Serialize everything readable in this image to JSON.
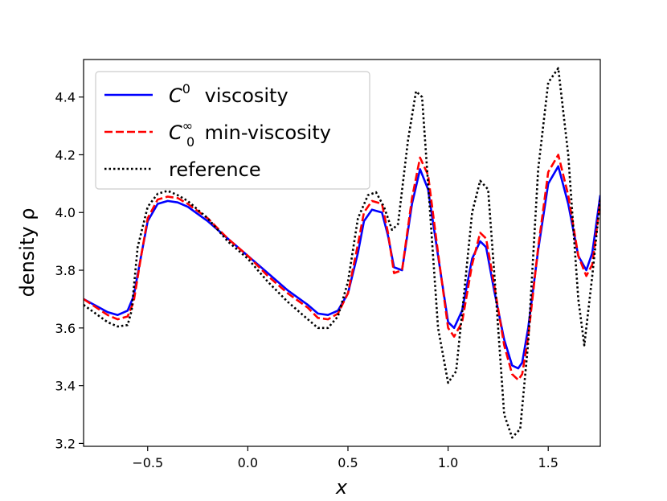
{
  "chart_data": {
    "type": "line",
    "title": "",
    "xlabel": "x",
    "ylabel": "density ρ",
    "xlim": [
      -0.82,
      1.76
    ],
    "ylim": [
      3.19,
      4.53
    ],
    "grid": false,
    "legend_position": "upper-left",
    "x_ticks": [
      -0.5,
      0.0,
      0.5,
      1.0,
      1.5
    ],
    "x_tick_labels": [
      "−0.5",
      "0.0",
      "0.5",
      "1.0",
      "1.5"
    ],
    "y_ticks": [
      3.2,
      3.4,
      3.6,
      3.8,
      4.0,
      4.2,
      4.4
    ],
    "y_tick_labels": [
      "3.2",
      "3.4",
      "3.6",
      "3.8",
      "4.0",
      "4.2",
      "4.4"
    ],
    "series": [
      {
        "name": "C0 viscosity",
        "legend_main": "C",
        "legend_sup": "0",
        "legend_sub": "",
        "legend_rest": " viscosity",
        "color": "#0000ff",
        "style": "solid",
        "x": [
          -0.82,
          -0.7,
          -0.65,
          -0.6,
          -0.57,
          -0.53,
          -0.5,
          -0.45,
          -0.4,
          -0.35,
          -0.3,
          -0.2,
          -0.1,
          0.0,
          0.1,
          0.2,
          0.3,
          0.35,
          0.4,
          0.45,
          0.5,
          0.55,
          0.58,
          0.62,
          0.67,
          0.7,
          0.73,
          0.77,
          0.82,
          0.86,
          0.9,
          0.95,
          1.0,
          1.03,
          1.07,
          1.12,
          1.16,
          1.19,
          1.23,
          1.28,
          1.32,
          1.35,
          1.37,
          1.4,
          1.45,
          1.5,
          1.55,
          1.6,
          1.65,
          1.69,
          1.72,
          1.76
        ],
        "y": [
          3.7,
          3.655,
          3.645,
          3.66,
          3.71,
          3.86,
          3.97,
          4.03,
          4.04,
          4.035,
          4.02,
          3.97,
          3.91,
          3.85,
          3.79,
          3.73,
          3.68,
          3.65,
          3.645,
          3.66,
          3.72,
          3.86,
          3.97,
          4.01,
          4.0,
          3.92,
          3.81,
          3.8,
          4.03,
          4.15,
          4.08,
          3.85,
          3.62,
          3.6,
          3.66,
          3.84,
          3.9,
          3.88,
          3.73,
          3.56,
          3.47,
          3.46,
          3.48,
          3.6,
          3.87,
          4.1,
          4.16,
          4.03,
          3.85,
          3.8,
          3.86,
          4.06
        ]
      },
      {
        "name": "C0∞ min-viscosity",
        "legend_main": "C",
        "legend_sup": "∞",
        "legend_sub": "0",
        "legend_rest": " min-viscosity",
        "color": "#ff0000",
        "style": "dashed",
        "x": [
          -0.82,
          -0.7,
          -0.65,
          -0.6,
          -0.57,
          -0.53,
          -0.5,
          -0.45,
          -0.4,
          -0.35,
          -0.3,
          -0.2,
          -0.1,
          0.0,
          0.1,
          0.2,
          0.3,
          0.35,
          0.4,
          0.45,
          0.5,
          0.55,
          0.58,
          0.62,
          0.67,
          0.7,
          0.73,
          0.77,
          0.82,
          0.86,
          0.9,
          0.95,
          1.0,
          1.03,
          1.07,
          1.12,
          1.16,
          1.19,
          1.23,
          1.28,
          1.32,
          1.35,
          1.37,
          1.4,
          1.45,
          1.5,
          1.55,
          1.6,
          1.65,
          1.69,
          1.72,
          1.76
        ],
        "y": [
          3.7,
          3.645,
          3.63,
          3.64,
          3.69,
          3.86,
          3.98,
          4.045,
          4.055,
          4.05,
          4.03,
          3.98,
          3.91,
          3.85,
          3.78,
          3.72,
          3.67,
          3.635,
          3.63,
          3.65,
          3.72,
          3.89,
          4.0,
          4.04,
          4.03,
          3.93,
          3.79,
          3.8,
          4.05,
          4.19,
          4.13,
          3.86,
          3.6,
          3.57,
          3.62,
          3.82,
          3.93,
          3.91,
          3.75,
          3.54,
          3.44,
          3.42,
          3.44,
          3.57,
          3.88,
          4.14,
          4.2,
          4.06,
          3.85,
          3.78,
          3.82,
          4.04
        ]
      },
      {
        "name": "reference",
        "legend_main": "reference",
        "legend_sup": "",
        "legend_sub": "",
        "legend_rest": "",
        "color": "#000000",
        "style": "dotted",
        "x": [
          -0.82,
          -0.7,
          -0.65,
          -0.6,
          -0.58,
          -0.55,
          -0.5,
          -0.45,
          -0.4,
          -0.35,
          -0.3,
          -0.2,
          -0.1,
          0.0,
          0.1,
          0.2,
          0.3,
          0.35,
          0.4,
          0.45,
          0.5,
          0.55,
          0.6,
          0.64,
          0.68,
          0.72,
          0.75,
          0.8,
          0.84,
          0.87,
          0.9,
          0.95,
          1.0,
          1.04,
          1.08,
          1.12,
          1.16,
          1.2,
          1.24,
          1.28,
          1.32,
          1.36,
          1.4,
          1.45,
          1.5,
          1.55,
          1.6,
          1.65,
          1.68,
          1.72,
          1.76
        ],
        "y": [
          3.68,
          3.62,
          3.605,
          3.61,
          3.66,
          3.88,
          4.02,
          4.065,
          4.075,
          4.06,
          4.04,
          3.98,
          3.9,
          3.84,
          3.76,
          3.69,
          3.63,
          3.6,
          3.6,
          3.64,
          3.76,
          3.98,
          4.06,
          4.07,
          4.02,
          3.94,
          3.96,
          4.25,
          4.42,
          4.4,
          4.1,
          3.6,
          3.41,
          3.45,
          3.72,
          4.0,
          4.11,
          4.08,
          3.7,
          3.3,
          3.22,
          3.25,
          3.55,
          4.15,
          4.45,
          4.5,
          4.2,
          3.7,
          3.54,
          3.78,
          4.05
        ]
      }
    ]
  }
}
